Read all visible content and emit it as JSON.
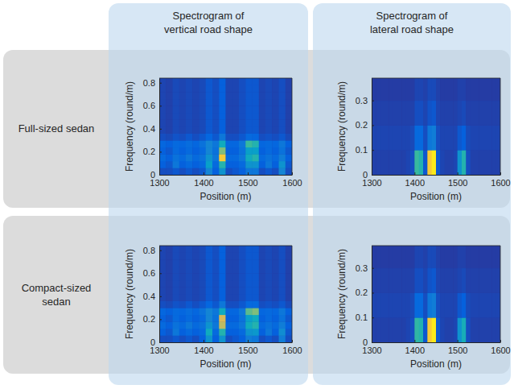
{
  "column_titles": [
    "Spectrogram of vertical road shape",
    "Spectrogram of lateral road shape"
  ],
  "row_titles": [
    "Full-sized sedan",
    "Compact-sized sedan"
  ],
  "chart_data": [
    {
      "type": "heatmap",
      "x_label": "Position (m)",
      "y_label": "Frequency (round/m)",
      "xlim": [
        1300,
        1600
      ],
      "ylim": [
        0,
        0.84
      ],
      "xticks": [
        1300,
        1400,
        1500,
        1600
      ],
      "yticks": [
        0,
        0.2,
        0.4,
        0.6,
        0.8
      ],
      "color_range": [
        0,
        1
      ],
      "x_edges": [
        1300,
        1315,
        1330,
        1345,
        1360,
        1375,
        1390,
        1405,
        1420,
        1435,
        1450,
        1465,
        1480,
        1495,
        1510,
        1525,
        1540,
        1555,
        1570,
        1585,
        1600
      ],
      "y_edges": [
        0,
        0.06,
        0.12,
        0.18,
        0.24,
        0.3,
        0.36,
        0.42,
        0.48,
        0.54,
        0.6,
        0.66,
        0.72,
        0.78,
        0.84
      ],
      "z": [
        [
          0.08,
          0.08,
          0.1,
          0.08,
          0.1,
          0.08,
          0.1,
          0.25,
          0.12,
          0.3,
          0.08,
          0.1,
          0.12,
          0.2,
          0.2,
          0.08,
          0.1,
          0.08,
          0.25,
          0.08
        ],
        [
          0.12,
          0.1,
          0.2,
          0.12,
          0.15,
          0.12,
          0.15,
          0.35,
          0.15,
          0.45,
          0.12,
          0.12,
          0.15,
          0.3,
          0.3,
          0.12,
          0.2,
          0.12,
          0.3,
          0.1
        ],
        [
          0.15,
          0.12,
          0.18,
          0.15,
          0.2,
          0.15,
          0.18,
          0.3,
          0.2,
          0.85,
          0.15,
          0.15,
          0.2,
          0.4,
          0.45,
          0.15,
          0.18,
          0.15,
          0.22,
          0.12
        ],
        [
          0.12,
          0.1,
          0.15,
          0.12,
          0.15,
          0.12,
          0.15,
          0.25,
          0.18,
          0.6,
          0.12,
          0.12,
          0.18,
          0.35,
          0.35,
          0.12,
          0.15,
          0.12,
          0.18,
          0.1
        ],
        [
          0.14,
          0.12,
          0.15,
          0.14,
          0.16,
          0.14,
          0.18,
          0.25,
          0.2,
          0.4,
          0.14,
          0.14,
          0.2,
          0.5,
          0.45,
          0.14,
          0.15,
          0.14,
          0.2,
          0.12
        ],
        [
          0.08,
          0.07,
          0.09,
          0.08,
          0.1,
          0.08,
          0.1,
          0.14,
          0.1,
          0.2,
          0.08,
          0.08,
          0.1,
          0.15,
          0.14,
          0.08,
          0.09,
          0.08,
          0.1,
          0.07
        ],
        [
          0.06,
          0.05,
          0.07,
          0.06,
          0.07,
          0.06,
          0.07,
          0.1,
          0.08,
          0.12,
          0.06,
          0.06,
          0.08,
          0.1,
          0.1,
          0.06,
          0.07,
          0.06,
          0.08,
          0.05
        ],
        [
          0.06,
          0.05,
          0.07,
          0.06,
          0.07,
          0.06,
          0.07,
          0.1,
          0.08,
          0.12,
          0.06,
          0.06,
          0.08,
          0.1,
          0.1,
          0.06,
          0.07,
          0.06,
          0.08,
          0.05
        ],
        [
          0.06,
          0.05,
          0.07,
          0.06,
          0.07,
          0.06,
          0.07,
          0.1,
          0.08,
          0.12,
          0.06,
          0.06,
          0.08,
          0.1,
          0.1,
          0.06,
          0.07,
          0.06,
          0.08,
          0.05
        ],
        [
          0.06,
          0.05,
          0.07,
          0.06,
          0.07,
          0.06,
          0.07,
          0.1,
          0.08,
          0.12,
          0.06,
          0.06,
          0.08,
          0.1,
          0.1,
          0.06,
          0.07,
          0.06,
          0.08,
          0.05
        ],
        [
          0.06,
          0.05,
          0.07,
          0.06,
          0.07,
          0.06,
          0.07,
          0.1,
          0.08,
          0.12,
          0.06,
          0.06,
          0.08,
          0.1,
          0.1,
          0.06,
          0.07,
          0.06,
          0.08,
          0.05
        ],
        [
          0.06,
          0.05,
          0.07,
          0.06,
          0.07,
          0.06,
          0.07,
          0.1,
          0.08,
          0.12,
          0.06,
          0.06,
          0.08,
          0.1,
          0.1,
          0.06,
          0.07,
          0.06,
          0.08,
          0.05
        ],
        [
          0.06,
          0.05,
          0.07,
          0.06,
          0.07,
          0.06,
          0.07,
          0.1,
          0.08,
          0.12,
          0.06,
          0.06,
          0.08,
          0.1,
          0.1,
          0.06,
          0.07,
          0.06,
          0.08,
          0.05
        ],
        [
          0.06,
          0.05,
          0.07,
          0.06,
          0.07,
          0.06,
          0.07,
          0.1,
          0.08,
          0.12,
          0.06,
          0.06,
          0.08,
          0.1,
          0.1,
          0.06,
          0.07,
          0.06,
          0.08,
          0.05
        ]
      ]
    },
    {
      "type": "heatmap",
      "x_label": "Position (m)",
      "y_label": "Frequency (round/m)",
      "xlim": [
        1300,
        1600
      ],
      "ylim": [
        0,
        0.39
      ],
      "xticks": [
        1300,
        1400,
        1500,
        1600
      ],
      "yticks": [
        0,
        0.1,
        0.2,
        0.3
      ],
      "color_range": [
        0,
        1
      ],
      "x_edges": [
        1300,
        1310,
        1320,
        1330,
        1340,
        1350,
        1360,
        1370,
        1380,
        1390,
        1400,
        1410,
        1420,
        1430,
        1440,
        1450,
        1460,
        1470,
        1480,
        1490,
        1500,
        1510,
        1520,
        1530,
        1540,
        1550,
        1560,
        1570,
        1580,
        1590,
        1600
      ],
      "y_edges": [
        0,
        0.1,
        0.2,
        0.3,
        0.39
      ],
      "z": [
        [
          0.05,
          0.05,
          0.05,
          0.05,
          0.05,
          0.05,
          0.05,
          0.05,
          0.06,
          0.08,
          0.5,
          0.45,
          0.1,
          0.85,
          0.95,
          0.1,
          0.06,
          0.05,
          0.05,
          0.06,
          0.3,
          0.45,
          0.08,
          0.05,
          0.05,
          0.05,
          0.05,
          0.05,
          0.05,
          0.05
        ],
        [
          0.06,
          0.06,
          0.06,
          0.06,
          0.06,
          0.06,
          0.06,
          0.06,
          0.06,
          0.07,
          0.15,
          0.15,
          0.08,
          0.2,
          0.22,
          0.08,
          0.06,
          0.06,
          0.06,
          0.06,
          0.1,
          0.12,
          0.07,
          0.06,
          0.06,
          0.06,
          0.06,
          0.06,
          0.06,
          0.06
        ],
        [
          0.05,
          0.05,
          0.05,
          0.05,
          0.05,
          0.05,
          0.05,
          0.05,
          0.05,
          0.05,
          0.08,
          0.08,
          0.06,
          0.09,
          0.1,
          0.06,
          0.05,
          0.05,
          0.05,
          0.05,
          0.06,
          0.07,
          0.05,
          0.05,
          0.05,
          0.05,
          0.05,
          0.05,
          0.05,
          0.05
        ],
        [
          0.04,
          0.04,
          0.04,
          0.04,
          0.04,
          0.04,
          0.04,
          0.04,
          0.04,
          0.04,
          0.06,
          0.06,
          0.05,
          0.07,
          0.07,
          0.05,
          0.04,
          0.04,
          0.04,
          0.04,
          0.05,
          0.05,
          0.04,
          0.04,
          0.04,
          0.04,
          0.04,
          0.04,
          0.04,
          0.04
        ]
      ]
    },
    {
      "type": "heatmap",
      "x_label": "Position (m)",
      "y_label": "Frequency (round/m)",
      "xlim": [
        1300,
        1600
      ],
      "ylim": [
        0,
        0.84
      ],
      "xticks": [
        1300,
        1400,
        1500,
        1600
      ],
      "yticks": [
        0,
        0.2,
        0.4,
        0.6,
        0.8
      ],
      "color_range": [
        0,
        1
      ],
      "x_edges": [
        1300,
        1315,
        1330,
        1345,
        1360,
        1375,
        1390,
        1405,
        1420,
        1435,
        1450,
        1465,
        1480,
        1495,
        1510,
        1525,
        1540,
        1555,
        1570,
        1585,
        1600
      ],
      "y_edges": [
        0,
        0.06,
        0.12,
        0.18,
        0.24,
        0.3,
        0.36,
        0.42,
        0.48,
        0.54,
        0.6,
        0.66,
        0.72,
        0.78,
        0.84
      ],
      "z": [
        [
          0.08,
          0.08,
          0.1,
          0.08,
          0.1,
          0.08,
          0.12,
          0.3,
          0.12,
          0.3,
          0.08,
          0.1,
          0.12,
          0.22,
          0.2,
          0.08,
          0.1,
          0.08,
          0.22,
          0.08
        ],
        [
          0.12,
          0.1,
          0.2,
          0.12,
          0.15,
          0.12,
          0.15,
          0.4,
          0.15,
          0.45,
          0.12,
          0.12,
          0.15,
          0.3,
          0.32,
          0.12,
          0.2,
          0.12,
          0.28,
          0.1
        ],
        [
          0.15,
          0.12,
          0.18,
          0.15,
          0.2,
          0.15,
          0.18,
          0.3,
          0.2,
          0.7,
          0.15,
          0.15,
          0.2,
          0.4,
          0.45,
          0.15,
          0.18,
          0.15,
          0.22,
          0.12
        ],
        [
          0.12,
          0.1,
          0.15,
          0.12,
          0.15,
          0.12,
          0.15,
          0.25,
          0.18,
          0.75,
          0.12,
          0.12,
          0.18,
          0.35,
          0.4,
          0.12,
          0.15,
          0.12,
          0.18,
          0.1
        ],
        [
          0.14,
          0.12,
          0.15,
          0.14,
          0.16,
          0.14,
          0.18,
          0.25,
          0.2,
          0.4,
          0.14,
          0.14,
          0.2,
          0.55,
          0.6,
          0.14,
          0.15,
          0.14,
          0.2,
          0.12
        ],
        [
          0.08,
          0.07,
          0.09,
          0.08,
          0.1,
          0.08,
          0.1,
          0.14,
          0.1,
          0.2,
          0.08,
          0.08,
          0.1,
          0.15,
          0.15,
          0.08,
          0.09,
          0.08,
          0.1,
          0.07
        ],
        [
          0.06,
          0.05,
          0.07,
          0.06,
          0.07,
          0.06,
          0.07,
          0.1,
          0.08,
          0.12,
          0.06,
          0.06,
          0.08,
          0.1,
          0.1,
          0.06,
          0.07,
          0.06,
          0.08,
          0.05
        ],
        [
          0.06,
          0.05,
          0.07,
          0.06,
          0.07,
          0.06,
          0.07,
          0.1,
          0.08,
          0.12,
          0.06,
          0.06,
          0.08,
          0.1,
          0.1,
          0.06,
          0.07,
          0.06,
          0.08,
          0.05
        ],
        [
          0.06,
          0.05,
          0.07,
          0.06,
          0.07,
          0.06,
          0.07,
          0.1,
          0.08,
          0.12,
          0.06,
          0.06,
          0.08,
          0.1,
          0.1,
          0.06,
          0.07,
          0.06,
          0.08,
          0.05
        ],
        [
          0.06,
          0.05,
          0.07,
          0.06,
          0.07,
          0.06,
          0.07,
          0.1,
          0.08,
          0.12,
          0.06,
          0.06,
          0.08,
          0.1,
          0.1,
          0.06,
          0.07,
          0.06,
          0.08,
          0.05
        ],
        [
          0.06,
          0.05,
          0.07,
          0.06,
          0.07,
          0.06,
          0.07,
          0.1,
          0.08,
          0.12,
          0.06,
          0.06,
          0.08,
          0.1,
          0.1,
          0.06,
          0.07,
          0.06,
          0.08,
          0.05
        ],
        [
          0.06,
          0.05,
          0.07,
          0.06,
          0.07,
          0.06,
          0.07,
          0.1,
          0.08,
          0.12,
          0.06,
          0.06,
          0.08,
          0.1,
          0.1,
          0.06,
          0.07,
          0.06,
          0.08,
          0.05
        ],
        [
          0.06,
          0.05,
          0.07,
          0.06,
          0.07,
          0.06,
          0.07,
          0.1,
          0.08,
          0.12,
          0.06,
          0.06,
          0.08,
          0.1,
          0.1,
          0.06,
          0.07,
          0.06,
          0.08,
          0.05
        ],
        [
          0.06,
          0.05,
          0.07,
          0.06,
          0.07,
          0.06,
          0.07,
          0.1,
          0.08,
          0.12,
          0.06,
          0.06,
          0.08,
          0.1,
          0.1,
          0.06,
          0.07,
          0.06,
          0.08,
          0.05
        ]
      ]
    },
    {
      "type": "heatmap",
      "x_label": "Position (m)",
      "y_label": "Frequency (round/m)",
      "xlim": [
        1300,
        1600
      ],
      "ylim": [
        0,
        0.39
      ],
      "xticks": [
        1300,
        1400,
        1500,
        1600
      ],
      "yticks": [
        0,
        0.1,
        0.2,
        0.3
      ],
      "color_range": [
        0,
        1
      ],
      "x_edges": [
        1300,
        1310,
        1320,
        1330,
        1340,
        1350,
        1360,
        1370,
        1380,
        1390,
        1400,
        1410,
        1420,
        1430,
        1440,
        1450,
        1460,
        1470,
        1480,
        1490,
        1500,
        1510,
        1520,
        1530,
        1540,
        1550,
        1560,
        1570,
        1580,
        1590,
        1600
      ],
      "y_edges": [
        0,
        0.1,
        0.2,
        0.3,
        0.39
      ],
      "z": [
        [
          0.05,
          0.05,
          0.05,
          0.05,
          0.05,
          0.05,
          0.05,
          0.05,
          0.06,
          0.08,
          0.48,
          0.45,
          0.1,
          0.85,
          0.95,
          0.1,
          0.06,
          0.05,
          0.05,
          0.06,
          0.3,
          0.42,
          0.08,
          0.05,
          0.05,
          0.05,
          0.05,
          0.05,
          0.05,
          0.05
        ],
        [
          0.06,
          0.06,
          0.06,
          0.06,
          0.06,
          0.06,
          0.06,
          0.06,
          0.06,
          0.07,
          0.15,
          0.15,
          0.08,
          0.2,
          0.22,
          0.08,
          0.06,
          0.06,
          0.06,
          0.06,
          0.1,
          0.12,
          0.07,
          0.06,
          0.06,
          0.06,
          0.06,
          0.06,
          0.06,
          0.06
        ],
        [
          0.05,
          0.05,
          0.05,
          0.05,
          0.05,
          0.05,
          0.05,
          0.05,
          0.05,
          0.05,
          0.08,
          0.08,
          0.06,
          0.09,
          0.1,
          0.06,
          0.05,
          0.05,
          0.05,
          0.05,
          0.06,
          0.07,
          0.05,
          0.05,
          0.05,
          0.05,
          0.05,
          0.05,
          0.05,
          0.05
        ],
        [
          0.04,
          0.04,
          0.04,
          0.04,
          0.04,
          0.04,
          0.04,
          0.04,
          0.04,
          0.04,
          0.06,
          0.06,
          0.05,
          0.07,
          0.07,
          0.05,
          0.04,
          0.04,
          0.04,
          0.04,
          0.05,
          0.05,
          0.04,
          0.04,
          0.04,
          0.04,
          0.04,
          0.04,
          0.04,
          0.04
        ]
      ]
    }
  ]
}
